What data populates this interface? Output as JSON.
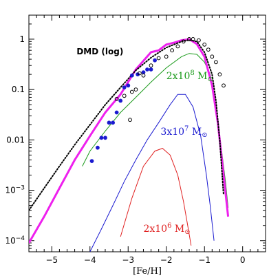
{
  "chart_data": {
    "type": "line",
    "title": "",
    "xlabel": "[Fe/H]",
    "ylabel": "",
    "xlim": [
      -5.6,
      0.6
    ],
    "ylim": [
      6e-05,
      3
    ],
    "yscale": "log",
    "grid": false,
    "legend": "none",
    "x_ticks": [
      {
        "value": -5,
        "label": "−5"
      },
      {
        "value": -4,
        "label": "−4"
      },
      {
        "value": -3,
        "label": "−3"
      },
      {
        "value": -2,
        "label": "−2"
      },
      {
        "value": -1,
        "label": "−1"
      },
      {
        "value": 0,
        "label": "0"
      }
    ],
    "y_ticks": [
      {
        "value": 1,
        "label": "1",
        "sup": ""
      },
      {
        "value": 0.1,
        "label": "0.1",
        "sup": ""
      },
      {
        "value": 0.01,
        "label": "0.01",
        "sup": ""
      },
      {
        "value": 0.001,
        "label": "10",
        "sup": "−3"
      },
      {
        "value": 0.0001,
        "label": "10",
        "sup": "−4"
      }
    ],
    "annotations": [
      {
        "text": "DMD (log)",
        "x": -4.35,
        "y": 0.5
      }
    ],
    "series": [
      {
        "name": "",
        "label_parts": {
          "base": "2x10",
          "exp": "8",
          "unit": " M",
          "sym": "⊙"
        },
        "label_at": {
          "x": -2.0,
          "y": 0.16
        },
        "color": "#1a9a1a",
        "x": [
          -4.2,
          -4.0,
          -3.6,
          -3.2,
          -2.8,
          -2.4,
          -2.0,
          -1.6,
          -1.4,
          -1.2,
          -1.0,
          -0.85,
          -0.75,
          -0.65,
          -0.55,
          -0.45,
          -0.38
        ],
        "y": [
          0.003,
          0.006,
          0.015,
          0.035,
          0.07,
          0.14,
          0.27,
          0.45,
          0.52,
          0.5,
          0.35,
          0.2,
          0.08,
          0.025,
          0.006,
          0.0015,
          0.00045
        ]
      },
      {
        "name": "",
        "label_parts": {
          "base": "3x10",
          "exp": "7",
          "unit": " M",
          "sym": "⊙"
        },
        "label_at": {
          "x": -2.15,
          "y": 0.0125
        },
        "color": "#1a1ad0",
        "x": [
          -4.0,
          -3.7,
          -3.4,
          -3.1,
          -2.8,
          -2.5,
          -2.2,
          -1.9,
          -1.7,
          -1.5,
          -1.3,
          -1.1,
          -0.95,
          -0.85,
          -0.75
        ],
        "y": [
          6e-05,
          0.00017,
          0.0005,
          0.0015,
          0.004,
          0.01,
          0.022,
          0.05,
          0.08,
          0.08,
          0.045,
          0.012,
          0.002,
          0.0005,
          0.0001
        ]
      },
      {
        "name": "",
        "label_parts": {
          "base": "2x10",
          "exp": "6",
          "unit": " M",
          "sym": "⊙"
        },
        "label_at": {
          "x": -2.6,
          "y": 0.00015
        },
        "color": "#e02020",
        "x": [
          -3.2,
          -2.9,
          -2.6,
          -2.3,
          -2.1,
          -1.9,
          -1.7,
          -1.55,
          -1.45,
          -1.35
        ],
        "y": [
          0.00012,
          0.0007,
          0.003,
          0.006,
          0.0068,
          0.005,
          0.002,
          0.0006,
          0.00022,
          8e-05
        ]
      },
      {
        "name": "",
        "color": "#ee20ee",
        "x": [
          -5.6,
          -5.2,
          -4.8,
          -4.4,
          -4.0,
          -3.6,
          -3.2,
          -2.8,
          -2.4,
          -2.2,
          -2.0,
          -1.8,
          -1.6,
          -1.4,
          -1.2,
          -1.0,
          -0.8,
          -0.65,
          -0.5,
          -0.38
        ],
        "y": [
          9e-05,
          0.0003,
          0.0011,
          0.004,
          0.012,
          0.035,
          0.08,
          0.25,
          0.55,
          0.6,
          0.78,
          0.85,
          0.95,
          1.0,
          0.8,
          0.45,
          0.12,
          0.022,
          0.002,
          0.0003
        ]
      },
      {
        "name": "",
        "color": "#000000",
        "dotted": true,
        "x": [
          -5.6,
          -5.2,
          -4.8,
          -4.4,
          -4.0,
          -3.6,
          -3.2,
          -2.8,
          -2.4,
          -2.0,
          -1.6,
          -1.4,
          -1.2,
          -1.0,
          -0.8,
          -0.7,
          -0.6,
          -0.5
        ],
        "y": [
          0.0004,
          0.0011,
          0.003,
          0.008,
          0.02,
          0.05,
          0.11,
          0.24,
          0.43,
          0.68,
          0.9,
          0.96,
          0.9,
          0.55,
          0.2,
          0.06,
          0.01,
          0.0008
        ]
      }
    ],
    "points": [
      {
        "name": "",
        "color": "#1a1ad0",
        "filled": true,
        "x": [
          -3.95,
          -3.8,
          -3.7,
          -3.6,
          -3.5,
          -3.4,
          -3.3,
          -3.2,
          -3.1,
          -3.0,
          -2.9,
          -2.75,
          -2.6,
          -2.5,
          -2.4,
          -2.3
        ],
        "y": [
          0.0038,
          0.007,
          0.011,
          0.011,
          0.022,
          0.022,
          0.035,
          0.06,
          0.11,
          0.12,
          0.19,
          0.2,
          0.22,
          0.25,
          0.25,
          0.38
        ]
      },
      {
        "name": "",
        "color": "#000000",
        "filled": false,
        "x": [
          -3.3,
          -3.1,
          -2.95,
          -2.9,
          -2.8,
          -2.7,
          -2.6,
          -2.4,
          -2.2,
          -2.0,
          -1.85,
          -1.7,
          -1.55,
          -1.4,
          -1.3,
          -1.15,
          -1.0,
          -0.9,
          -0.8,
          -0.7,
          -0.6,
          -0.5
        ],
        "y": [
          0.065,
          0.075,
          0.025,
          0.09,
          0.1,
          0.21,
          0.19,
          0.3,
          0.42,
          0.45,
          0.6,
          0.72,
          0.9,
          1.0,
          1.0,
          0.95,
          0.78,
          0.62,
          0.45,
          0.35,
          0.2,
          0.12
        ]
      }
    ]
  }
}
